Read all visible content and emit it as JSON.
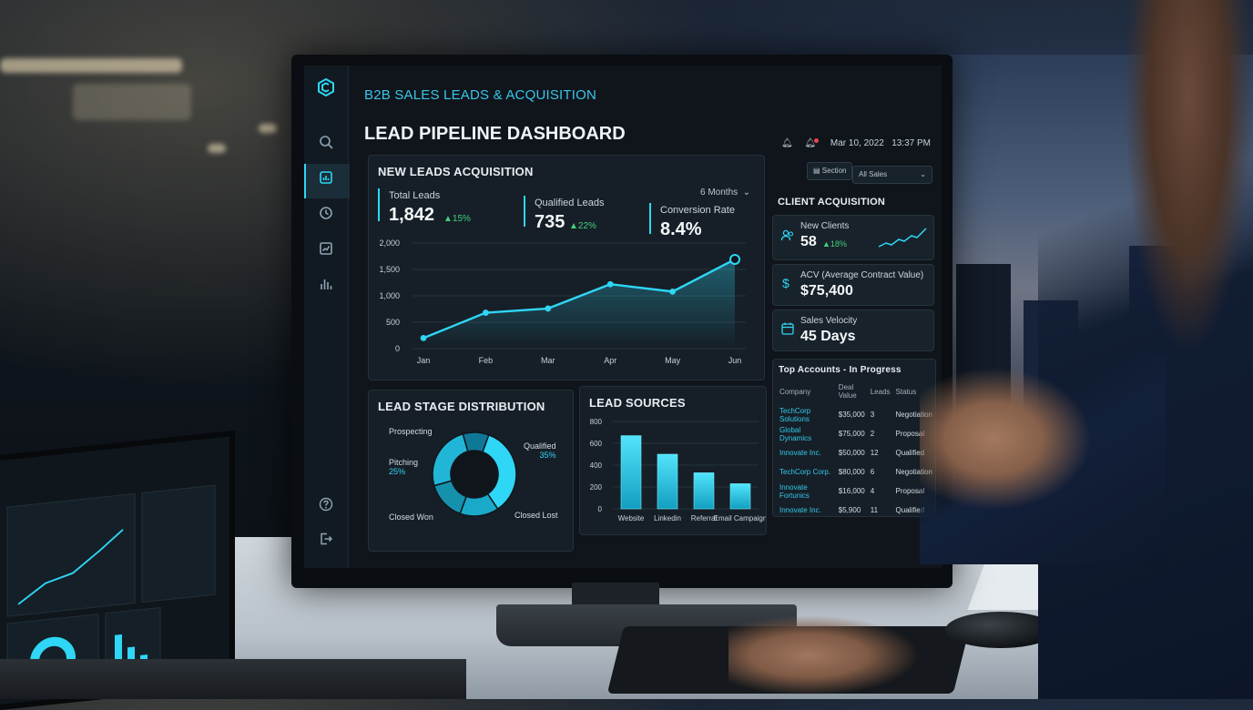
{
  "app": {
    "title": "B2B SALES LEADS & ACQUISITION",
    "page_title": "LEAD PIPELINE DASHBOARD",
    "date": "Mar 10, 2022",
    "time": "13:37 PM"
  },
  "sidebar": {
    "items": [
      {
        "icon": "search-icon"
      },
      {
        "icon": "dashboard-icon",
        "active": true
      },
      {
        "icon": "clock-icon"
      },
      {
        "icon": "trend-chart-icon"
      },
      {
        "icon": "bar-chart-icon"
      }
    ],
    "bottom": [
      {
        "icon": "help-icon"
      },
      {
        "icon": "logout-icon"
      }
    ]
  },
  "filters": {
    "section_label": "Section",
    "sales_select": "All Sales"
  },
  "new_leads": {
    "title": "NEW LEADS ACQUISITION",
    "range_select": "6 Months",
    "kpis": [
      {
        "label": "Total Leads",
        "value": "1,842",
        "delta": "▲15%"
      },
      {
        "label": "Qualified Leads",
        "value": "735",
        "delta": "▲22%"
      },
      {
        "label": "Conversion Rate",
        "value": "8.4%"
      }
    ]
  },
  "client_acquisition": {
    "title": "CLIENT ACQUISITION",
    "cards": [
      {
        "label": "New Clients",
        "value": "58",
        "delta": "▲18%",
        "icon": "users-icon"
      },
      {
        "label": "ACV (Average Contract Value)",
        "value": "$75,400",
        "icon": "dollar-icon"
      },
      {
        "label": "Sales Velocity",
        "value": "45 Days",
        "icon": "calendar-icon"
      }
    ]
  },
  "top_accounts": {
    "title": "Top Accounts - In Progress",
    "columns": [
      "Company",
      "Deal Value",
      "Leads",
      "Status"
    ],
    "rows": [
      [
        "TechCorp Solutions",
        "$35,000",
        "3",
        "Negotiation"
      ],
      [
        "Global Dynamics",
        "$75,000",
        "2",
        "Proposal"
      ],
      [
        "Innovate Inc.",
        "$50,000",
        "12",
        "Qualified"
      ],
      [
        "TechCorp Corp.",
        "$80,000",
        "6",
        "Negotiation"
      ],
      [
        "Innovate Fortunics",
        "$16,000",
        "4",
        "Proposal"
      ],
      [
        "Innovate Inc.",
        "$5,900",
        "11",
        "Qualified"
      ]
    ]
  },
  "lead_stage": {
    "title": "LEAD STAGE DISTRIBUTION",
    "labels": [
      {
        "name": "Prospecting"
      },
      {
        "name": "Pitching",
        "pct": "25%"
      },
      {
        "name": "Qualified",
        "pct": "35%"
      },
      {
        "name": "Closed Won"
      },
      {
        "name": "Closed Lost"
      }
    ]
  },
  "lead_sources": {
    "title": "LEAD SOURCES"
  },
  "colors": {
    "accent": "#2fd6f5",
    "positive": "#41d07c",
    "panel": "#161f27",
    "background": "#0f151b"
  },
  "chart_data": [
    {
      "type": "line",
      "title": "NEW LEADS ACQUISITION",
      "categories": [
        "Jan",
        "Feb",
        "Mar",
        "Apr",
        "May",
        "Jun"
      ],
      "y_ticks": [
        "2,000",
        "1,500",
        "1,000",
        "500",
        "0"
      ],
      "ylim": [
        0,
        2000
      ],
      "series": [
        {
          "values": [
            200,
            680,
            760,
            1220,
            1080,
            1690
          ]
        }
      ],
      "grid": true
    },
    {
      "type": "pie",
      "title": "LEAD STAGE DISTRIBUTION",
      "categories": [
        "Qualified",
        "Closed Lost",
        "Closed Won",
        "Pitching",
        "Prospecting"
      ],
      "values": [
        35,
        15,
        15,
        25,
        10
      ],
      "style": "donut"
    },
    {
      "type": "bar",
      "title": "LEAD SOURCES",
      "categories": [
        "Website",
        "Linkedin",
        "Referral",
        "Email Campaign"
      ],
      "values": [
        670,
        500,
        330,
        230
      ],
      "y_ticks": [
        "800",
        "600",
        "400",
        "200",
        "0"
      ],
      "ylim": [
        0,
        800
      ]
    }
  ]
}
